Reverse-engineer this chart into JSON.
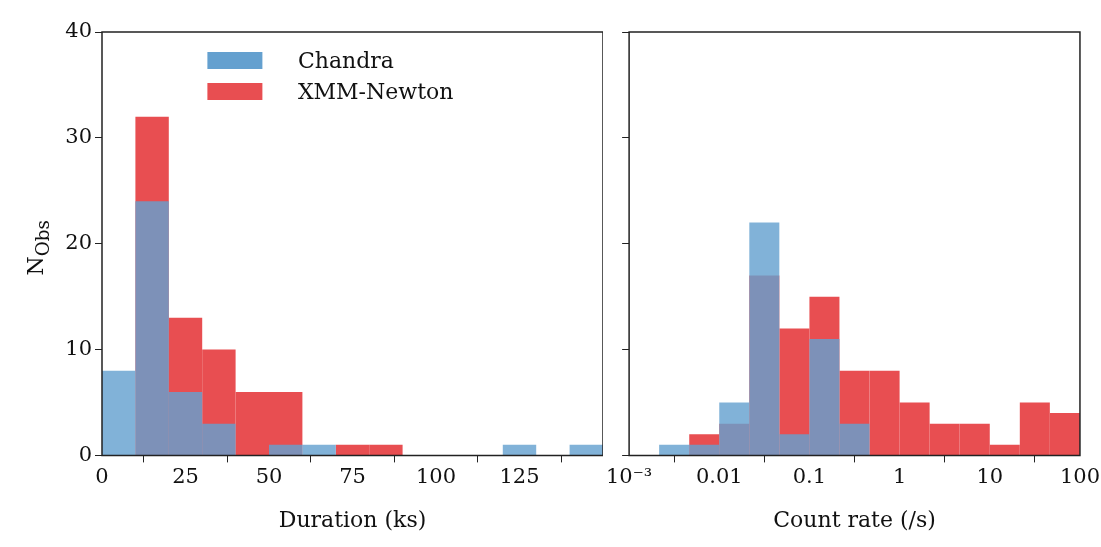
{
  "chart_data": [
    {
      "type": "histogram",
      "xlabel": "Duration (ks)",
      "ylabel": "N$_{Obs}$",
      "bins": [
        0,
        10,
        20,
        30,
        40,
        50,
        60,
        70,
        80,
        90,
        100,
        110,
        120,
        130,
        140,
        150
      ],
      "series": [
        {
          "name": "Chandra",
          "color": "#64a0cf",
          "values": [
            8,
            24,
            6,
            3,
            0,
            1,
            1,
            0,
            0,
            0,
            0,
            0,
            1,
            0,
            1
          ]
        },
        {
          "name": "XMM-Newton",
          "color": "#e84e51",
          "values": [
            null,
            32,
            13,
            10,
            6,
            6,
            0,
            1,
            1,
            0,
            0,
            0,
            0,
            0,
            0
          ]
        }
      ],
      "xlim": [
        0,
        150
      ],
      "xticks": [
        0,
        25,
        50,
        75,
        100,
        125
      ],
      "ylim": [
        0,
        40
      ],
      "yticks": [
        0,
        10,
        20,
        30,
        40
      ],
      "legend": "top",
      "grid": false
    },
    {
      "type": "histogram",
      "xlabel": "Count rate (/s)",
      "bins": [
        0.001,
        0.00215,
        0.00464,
        0.01,
        0.0215,
        0.0464,
        0.1,
        0.215,
        0.464,
        1,
        2.15,
        4.64,
        10,
        21.5,
        46.4,
        100
      ],
      "series": [
        {
          "color": "#64a0cf",
          "values": [
            0,
            1,
            1,
            5,
            22,
            2,
            11,
            3,
            0,
            0,
            0,
            0,
            0,
            0,
            0
          ]
        },
        {
          "color": "#e84e51",
          "values": [
            0,
            0,
            2,
            3,
            17,
            12,
            15,
            8,
            8,
            5,
            3,
            3,
            1,
            5,
            4
          ]
        }
      ],
      "log": "x",
      "xlim": [
        0.001,
        100
      ],
      "xticks": [
        {
          "value": 0.001,
          "label": "10⁻³"
        },
        0.01,
        0.1,
        1,
        10,
        100
      ],
      "ylim": [
        0,
        40
      ],
      "yticks": [
        0,
        10,
        20,
        30,
        40
      ],
      "tick_labels": "x",
      "grid": false
    }
  ]
}
